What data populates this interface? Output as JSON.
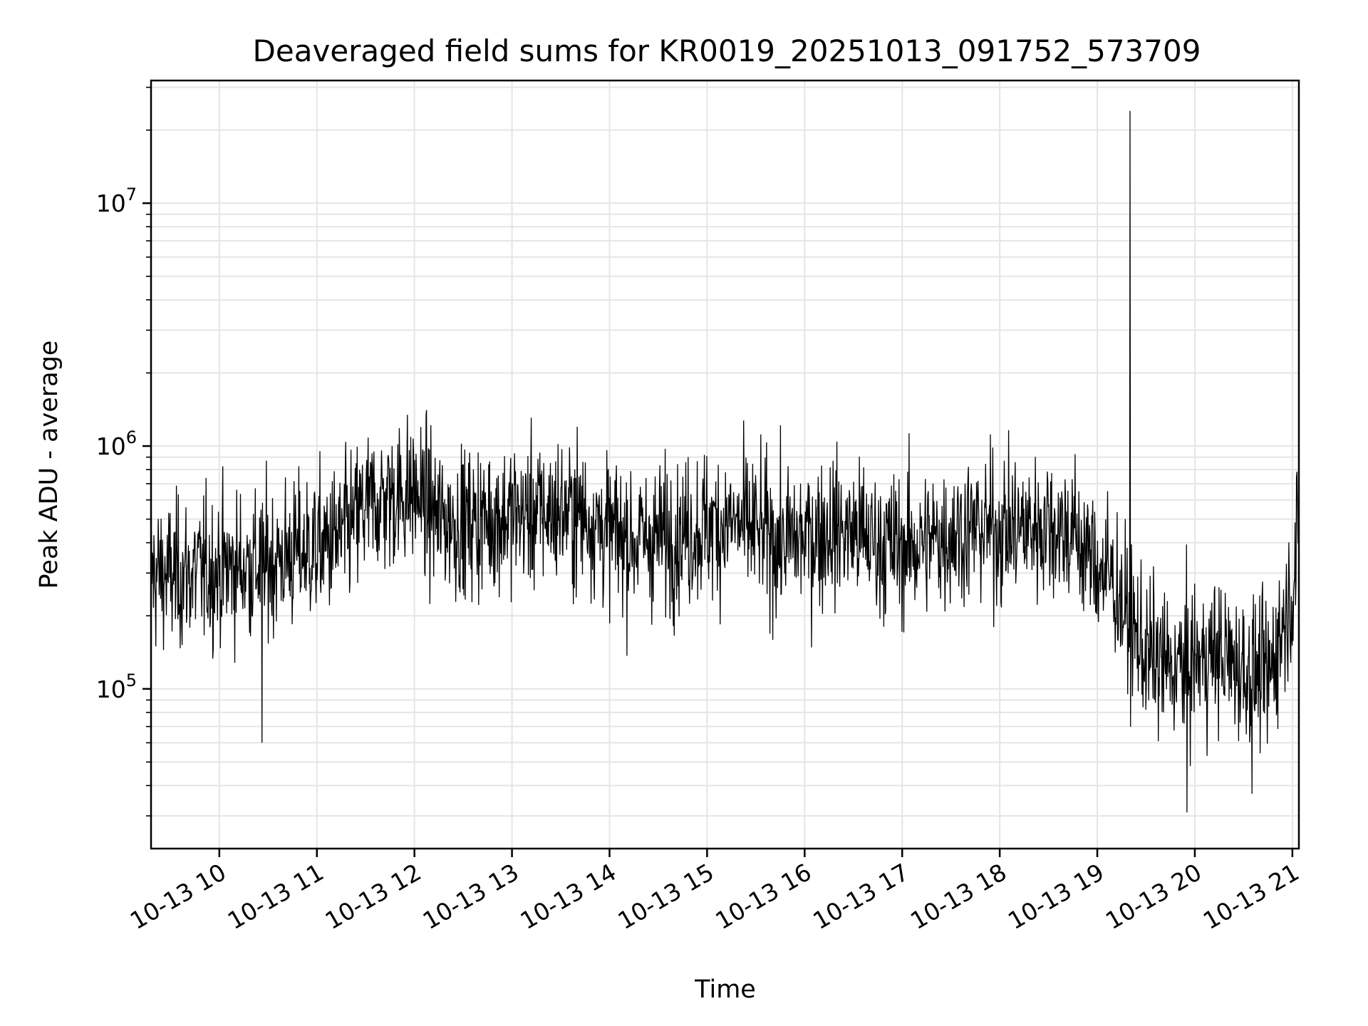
{
  "chart_data": {
    "type": "line",
    "title": "Deaveraged field sums for KR0019_20251013_091752_573709",
    "xlabel": "Time",
    "ylabel": "Peak ADU - average",
    "x_range": [
      "2025-10-13T09:18:00",
      "2025-10-13T21:04:00"
    ],
    "x_tick_values": [
      "2025-10-13T10:00",
      "2025-10-13T11:00",
      "2025-10-13T12:00",
      "2025-10-13T13:00",
      "2025-10-13T14:00",
      "2025-10-13T15:00",
      "2025-10-13T16:00",
      "2025-10-13T17:00",
      "2025-10-13T18:00",
      "2025-10-13T19:00",
      "2025-10-13T20:00",
      "2025-10-13T21:00"
    ],
    "x_tick_labels": [
      "10-13 10",
      "10-13 11",
      "10-13 12",
      "10-13 13",
      "10-13 14",
      "10-13 15",
      "10-13 16",
      "10-13 17",
      "10-13 18",
      "10-13 19",
      "10-13 20",
      "10-13 21"
    ],
    "y_scale": "log",
    "y_range": [
      22000,
      32000000
    ],
    "y_ticks": [
      {
        "value": 100000,
        "base": "10",
        "exp": "5"
      },
      {
        "value": 1000000,
        "base": "10",
        "exp": "6"
      },
      {
        "value": 10000000,
        "base": "10",
        "exp": "7"
      }
    ],
    "grid": true,
    "line_color": "#000000",
    "series": [
      {
        "name": "",
        "x": [
          "2025-10-13T09:18",
          "2025-10-13T09:30",
          "2025-10-13T09:45",
          "2025-10-13T10:00",
          "2025-10-13T10:15",
          "2025-10-13T10:30",
          "2025-10-13T10:45",
          "2025-10-13T11:00",
          "2025-10-13T11:15",
          "2025-10-13T11:30",
          "2025-10-13T11:45",
          "2025-10-13T12:00",
          "2025-10-13T12:15",
          "2025-10-13T12:30",
          "2025-10-13T12:45",
          "2025-10-13T13:00",
          "2025-10-13T13:15",
          "2025-10-13T13:30",
          "2025-10-13T13:45",
          "2025-10-13T14:00",
          "2025-10-13T14:15",
          "2025-10-13T14:30",
          "2025-10-13T14:45",
          "2025-10-13T15:00",
          "2025-10-13T15:15",
          "2025-10-13T15:30",
          "2025-10-13T15:45",
          "2025-10-13T16:00",
          "2025-10-13T16:15",
          "2025-10-13T16:30",
          "2025-10-13T16:45",
          "2025-10-13T17:00",
          "2025-10-13T17:15",
          "2025-10-13T17:30",
          "2025-10-13T17:45",
          "2025-10-13T18:00",
          "2025-10-13T18:15",
          "2025-10-13T18:30",
          "2025-10-13T18:45",
          "2025-10-13T19:00",
          "2025-10-13T19:10",
          "2025-10-13T19:20",
          "2025-10-13T19:30",
          "2025-10-13T19:45",
          "2025-10-13T20:00",
          "2025-10-13T20:15",
          "2025-10-13T20:30",
          "2025-10-13T20:45",
          "2025-10-13T21:00",
          "2025-10-13T21:04"
        ],
        "y": [
          300000,
          290000,
          300000,
          310000,
          320000,
          330000,
          360000,
          380000,
          420000,
          560000,
          620000,
          650000,
          500000,
          480000,
          500000,
          520000,
          530000,
          540000,
          520000,
          440000,
          410000,
          420000,
          440000,
          470000,
          480000,
          450000,
          400000,
          420000,
          460000,
          440000,
          400000,
          380000,
          400000,
          440000,
          460000,
          450000,
          460000,
          480000,
          440000,
          320000,
          280000,
          180000,
          140000,
          120000,
          130000,
          140000,
          120000,
          110000,
          260000,
          400000
        ]
      }
    ],
    "spike": {
      "x": "2025-10-13T19:20",
      "y": 24000000
    },
    "dips": [
      {
        "x": "2025-10-13T10:26",
        "y": 60000
      },
      {
        "x": "2025-10-13T19:55",
        "y": 31000
      },
      {
        "x": "2025-10-13T20:35",
        "y": 37000
      }
    ]
  }
}
